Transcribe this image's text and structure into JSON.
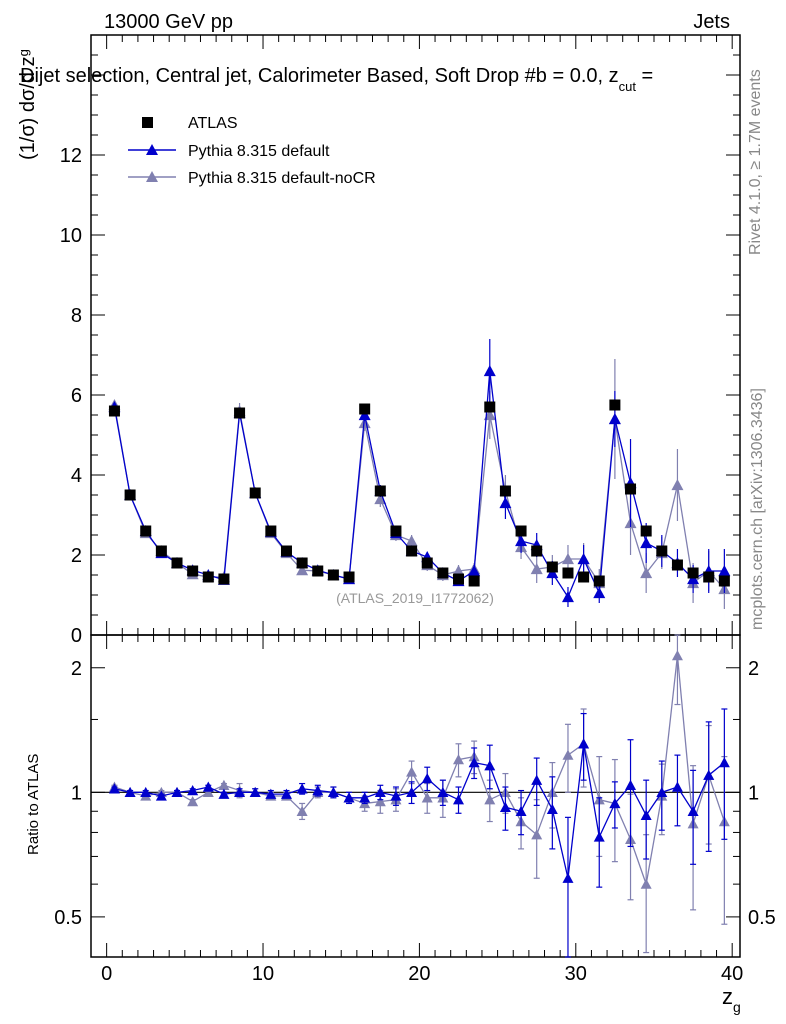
{
  "header": {
    "left": "13000 GeV pp",
    "right": "Jets"
  },
  "title": "Dijet selection, Central jet, Calorimeter Based, Soft Drop #b = 0.0, z",
  "title_sub": "cut",
  "title_tail": " =",
  "side_rivet": "Rivet 4.1.0, ≥ 1.7M events",
  "side_mcplots": "mcplots.cern.ch [arXiv:1306.3436]",
  "watermark": "(ATLAS_2019_I1772062)",
  "colors": {
    "atlas": "#000000",
    "default": "#0000cc",
    "nocr": "#8080b0",
    "axis": "#000000"
  },
  "chart_data": {
    "type": "scatter",
    "xlabel": "z",
    "xlabel_sub": "g",
    "ylabel": "(1/σ) dσ/d z",
    "ylabel_sub": "g",
    "xlim": [
      -1,
      40.5
    ],
    "ylim": [
      0,
      15
    ],
    "x_ticks": [
      0,
      10,
      20,
      30,
      40
    ],
    "y_ticks": [
      0,
      2,
      4,
      6,
      8,
      10,
      12
    ],
    "legend": [
      "ATLAS",
      "Pythia 8.315 default",
      "Pythia 8.315 default-noCR"
    ],
    "x": [
      0.5,
      1.5,
      2.5,
      3.5,
      4.5,
      5.5,
      6.5,
      7.5,
      8.5,
      9.5,
      10.5,
      11.5,
      12.5,
      13.5,
      14.5,
      15.5,
      16.5,
      17.5,
      18.5,
      19.5,
      20.5,
      21.5,
      22.5,
      23.5,
      24.5,
      25.5,
      26.5,
      27.5,
      28.5,
      29.5,
      30.5,
      31.5,
      32.5,
      33.5,
      34.5,
      35.5,
      36.5,
      37.5,
      38.5,
      39.5
    ],
    "series": [
      {
        "name": "ATLAS",
        "values": [
          5.6,
          3.5,
          2.6,
          2.1,
          1.8,
          1.6,
          1.45,
          1.4,
          5.55,
          3.55,
          2.6,
          2.1,
          1.8,
          1.6,
          1.5,
          1.45,
          5.65,
          3.6,
          2.6,
          2.1,
          1.8,
          1.55,
          1.4,
          1.35,
          5.7,
          3.6,
          2.6,
          2.1,
          1.7,
          1.55,
          1.45,
          1.35,
          5.75,
          3.65,
          2.6,
          2.1,
          1.75,
          1.55,
          1.45,
          1.35
        ]
      },
      {
        "name": "Pythia 8.315 default",
        "values": [
          5.7,
          3.5,
          2.6,
          2.05,
          1.8,
          1.62,
          1.5,
          1.38,
          5.55,
          3.55,
          2.58,
          2.08,
          1.8,
          1.62,
          1.5,
          1.4,
          5.5,
          3.6,
          2.55,
          2.1,
          1.95,
          1.55,
          1.35,
          1.6,
          6.6,
          3.3,
          2.35,
          2.25,
          1.55,
          0.95,
          1.9,
          1.05,
          5.4,
          3.8,
          2.3,
          2.1,
          1.8,
          1.4,
          1.6,
          1.6
        ],
        "errors": [
          0.05,
          0.05,
          0.05,
          0.05,
          0.05,
          0.05,
          0.05,
          0.05,
          0.1,
          0.08,
          0.06,
          0.05,
          0.05,
          0.05,
          0.05,
          0.05,
          0.15,
          0.15,
          0.12,
          0.12,
          0.12,
          0.1,
          0.1,
          0.15,
          0.8,
          0.4,
          0.3,
          0.3,
          0.3,
          0.25,
          0.35,
          0.25,
          0.7,
          1.1,
          0.5,
          0.4,
          0.35,
          0.35,
          0.55,
          0.55
        ]
      },
      {
        "name": "Pythia 8.315 default-noCR",
        "values": [
          5.75,
          3.5,
          2.55,
          2.1,
          1.8,
          1.52,
          1.45,
          1.45,
          5.6,
          3.55,
          2.55,
          2.05,
          1.62,
          1.6,
          1.5,
          1.4,
          5.3,
          3.4,
          2.5,
          2.35,
          1.75,
          1.5,
          1.6,
          1.65,
          5.5,
          3.6,
          2.2,
          1.65,
          1.7,
          1.9,
          1.9,
          1.3,
          5.4,
          2.8,
          1.55,
          2.05,
          3.75,
          1.3,
          1.6,
          1.15
        ],
        "errors": [
          0.05,
          0.05,
          0.05,
          0.05,
          0.05,
          0.05,
          0.05,
          0.05,
          0.2,
          0.08,
          0.06,
          0.05,
          0.07,
          0.05,
          0.05,
          0.05,
          0.2,
          0.2,
          0.15,
          0.15,
          0.15,
          0.15,
          0.15,
          0.15,
          0.6,
          0.4,
          0.3,
          0.35,
          0.3,
          0.35,
          0.4,
          0.35,
          1.5,
          0.8,
          0.5,
          0.4,
          0.9,
          0.5,
          0.5,
          0.5
        ]
      }
    ],
    "ratio": {
      "ylabel": "Ratio to ATLAS",
      "ylim": [
        0.4,
        2.4
      ],
      "y_ticks": [
        0.5,
        1,
        2
      ],
      "y_tick_labels": [
        "0.5",
        "1",
        "2"
      ],
      "default": [
        1.02,
        1.0,
        1.0,
        0.98,
        1.0,
        1.01,
        1.03,
        0.99,
        1.0,
        1.0,
        0.99,
        0.99,
        1.02,
        1.01,
        1.0,
        0.97,
        0.97,
        1.0,
        0.98,
        1.0,
        1.08,
        1.0,
        0.96,
        1.18,
        1.16,
        0.92,
        0.9,
        1.07,
        0.91,
        0.62,
        1.31,
        0.78,
        0.94,
        1.04,
        0.88,
        1.0,
        1.03,
        0.9,
        1.1,
        1.18
      ],
      "default_err": [
        0.01,
        0.01,
        0.01,
        0.01,
        0.01,
        0.01,
        0.01,
        0.01,
        0.02,
        0.02,
        0.02,
        0.02,
        0.03,
        0.03,
        0.03,
        0.03,
        0.03,
        0.04,
        0.05,
        0.06,
        0.07,
        0.07,
        0.07,
        0.1,
        0.14,
        0.11,
        0.11,
        0.14,
        0.18,
        0.25,
        0.24,
        0.19,
        0.12,
        0.3,
        0.19,
        0.19,
        0.2,
        0.23,
        0.38,
        0.41
      ],
      "nocr": [
        1.03,
        1.0,
        0.98,
        1.0,
        1.0,
        0.95,
        1.0,
        1.04,
        1.01,
        1.0,
        0.98,
        0.98,
        0.9,
        1.0,
        1.0,
        0.97,
        0.94,
        0.95,
        0.96,
        1.12,
        0.97,
        0.97,
        1.2,
        1.22,
        0.96,
        1.0,
        0.85,
        0.79,
        1.0,
        1.23,
        1.31,
        0.96,
        0.94,
        0.77,
        0.6,
        0.98,
        2.14,
        0.84,
        1.1,
        0.85
      ],
      "nocr_err": [
        0.01,
        0.01,
        0.01,
        0.01,
        0.01,
        0.01,
        0.01,
        0.01,
        0.04,
        0.02,
        0.02,
        0.02,
        0.04,
        0.03,
        0.03,
        0.03,
        0.04,
        0.06,
        0.06,
        0.07,
        0.08,
        0.1,
        0.11,
        0.11,
        0.11,
        0.11,
        0.12,
        0.17,
        0.18,
        0.23,
        0.28,
        0.26,
        0.26,
        0.22,
        0.19,
        0.19,
        0.51,
        0.32,
        0.35,
        0.37
      ]
    }
  }
}
